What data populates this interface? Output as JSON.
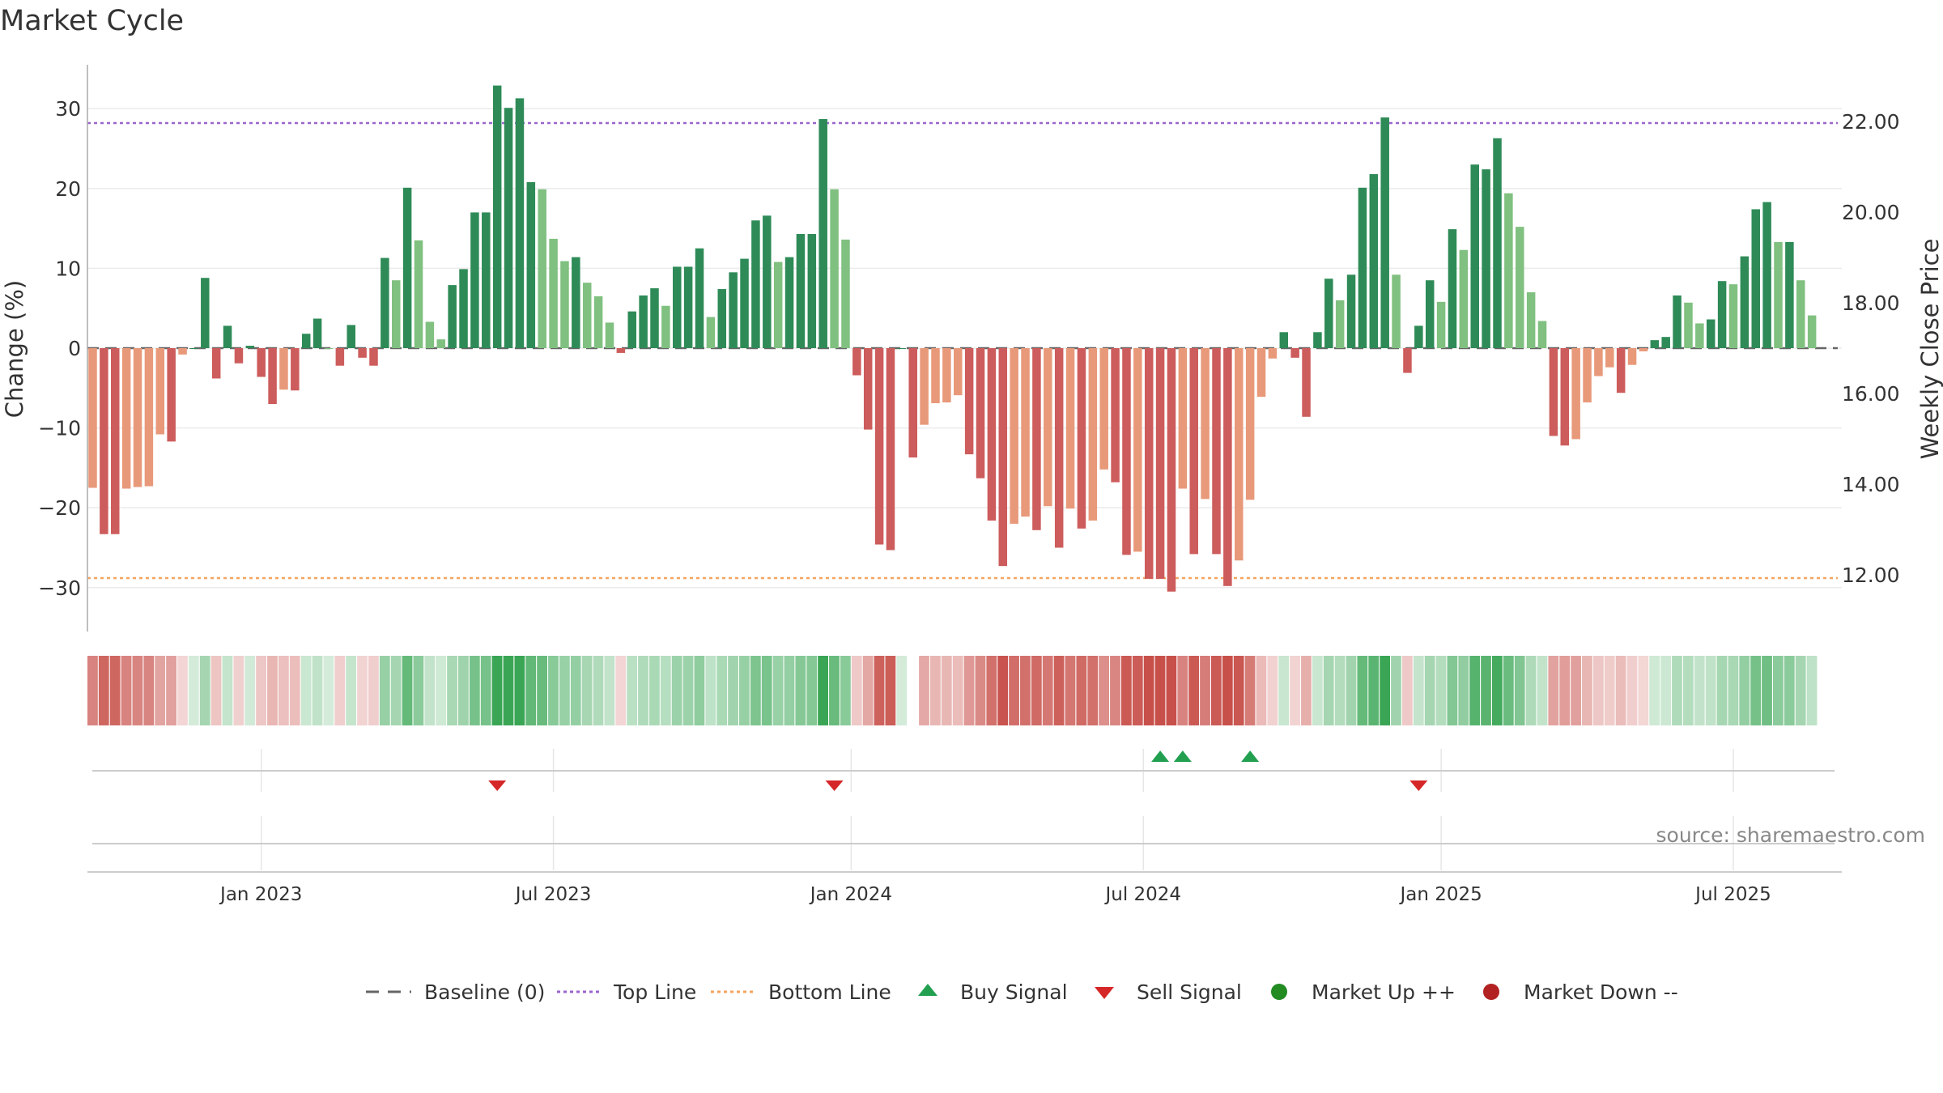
{
  "title": "Market Cycle",
  "source": "source: sharemaestro.com",
  "colors": {
    "strong_up": "#2e8b57",
    "weak_up": "#80c080",
    "strong_down": "#cd5c5c",
    "weak_down": "#e8997a",
    "top_line": "#9966cc",
    "bottom_line": "#f4a460",
    "buy": "#22a050",
    "sell": "#d62728",
    "market_up": "#228b22",
    "market_down": "#b22222",
    "baseline": "#666666"
  },
  "chart_data": {
    "type": "bar",
    "title": "Market Cycle",
    "ylabel": "Change (%)",
    "y2label": "Weekly Close Price",
    "ylim": [
      -35.5,
      35.5
    ],
    "y2lim": [
      10.75,
      23.25
    ],
    "yticks": [
      -30,
      -20,
      -10,
      0,
      10,
      20,
      30
    ],
    "yticklabels": [
      "−30",
      "−20",
      "−10",
      "0",
      "10",
      "20",
      "30"
    ],
    "y2ticks": [
      12,
      14,
      16,
      18,
      20,
      22
    ],
    "y2ticklabels": [
      "12.00",
      "14.00",
      "16.00",
      "18.00",
      "20.00",
      "22.00"
    ],
    "xticklabels": [
      "Jan 2023",
      "Jul 2023",
      "Jan 2024",
      "Jul 2024",
      "Jan 2025",
      "Jul 2025"
    ],
    "xtick_weeks": [
      15,
      41,
      67.5,
      93.5,
      120,
      146
    ],
    "top_line": 28.2,
    "bottom_line": -28.8,
    "grid": true,
    "legend_position": "bottom-center",
    "legend": [
      {
        "label": "Baseline (0)",
        "symbol": "dash"
      },
      {
        "label": "Top Line",
        "symbol": "dotted-purple"
      },
      {
        "label": "Bottom Line",
        "symbol": "dotted-orange"
      },
      {
        "label": "Buy Signal",
        "symbol": "triangle-up"
      },
      {
        "label": "Sell Signal",
        "symbol": "triangle-down"
      },
      {
        "label": "Market Up ++",
        "symbol": "dot-green"
      },
      {
        "label": "Market Down --",
        "symbol": "dot-red"
      }
    ],
    "values": [
      -17.5,
      -23.3,
      -23.3,
      -17.6,
      -17.4,
      -17.3,
      -10.8,
      -11.7,
      -0.8,
      0,
      8.8,
      -3.8,
      2.8,
      -1.9,
      0.3,
      -3.6,
      -7,
      -5.2,
      -5.3,
      1.8,
      3.7,
      0,
      -2.2,
      2.9,
      -1.2,
      -2.2,
      11.3,
      8.5,
      20.1,
      13.5,
      3.3,
      1.1,
      7.9,
      9.9,
      17,
      17,
      32.9,
      30.1,
      31.3,
      20.8,
      19.9,
      13.7,
      10.9,
      11.4,
      8.2,
      6.5,
      3.2,
      -0.6,
      4.6,
      6.6,
      7.5,
      5.3,
      10.2,
      10.2,
      12.5,
      3.9,
      7.4,
      9.5,
      11.2,
      16,
      16.6,
      10.8,
      11.4,
      14.3,
      14.3,
      28.7,
      19.9,
      13.6,
      -3.4,
      -10.2,
      -24.6,
      -25.3,
      0,
      -13.7,
      -9.6,
      -6.9,
      -6.8,
      -5.9,
      -13.3,
      -16.3,
      -21.6,
      -27.3,
      -22,
      -21.1,
      -22.8,
      -19.8,
      -25,
      -20.1,
      -22.6,
      -21.6,
      -15.2,
      -16.8,
      -25.9,
      -25.5,
      -28.9,
      -28.9,
      -30.5,
      -17.6,
      -25.8,
      -18.9,
      -25.8,
      -29.8,
      -26.6,
      -19,
      -6.1,
      -1.3,
      2,
      -1.2,
      -8.6,
      2,
      8.7,
      6,
      9.2,
      20.1,
      21.8,
      28.9,
      9.2,
      -3.1,
      2.8,
      8.5,
      5.8,
      14.9,
      12.3,
      23,
      22.4,
      26.3,
      19.4,
      15.2,
      7,
      3.4,
      -11,
      -12.2,
      -11.4,
      -6.8,
      -3.5,
      -2.4,
      -5.6,
      -2.1,
      -0.4,
      1,
      1.4,
      6.6,
      5.7,
      3.1,
      3.6,
      8.4,
      8,
      11.5,
      17.4,
      18.3,
      13.3,
      13.3,
      8.5,
      4.1
    ],
    "buy_signal_weeks": [
      95,
      97,
      103
    ],
    "sell_signal_weeks": [
      36,
      66,
      118
    ],
    "heat_blank_weeks": [
      73
    ]
  }
}
